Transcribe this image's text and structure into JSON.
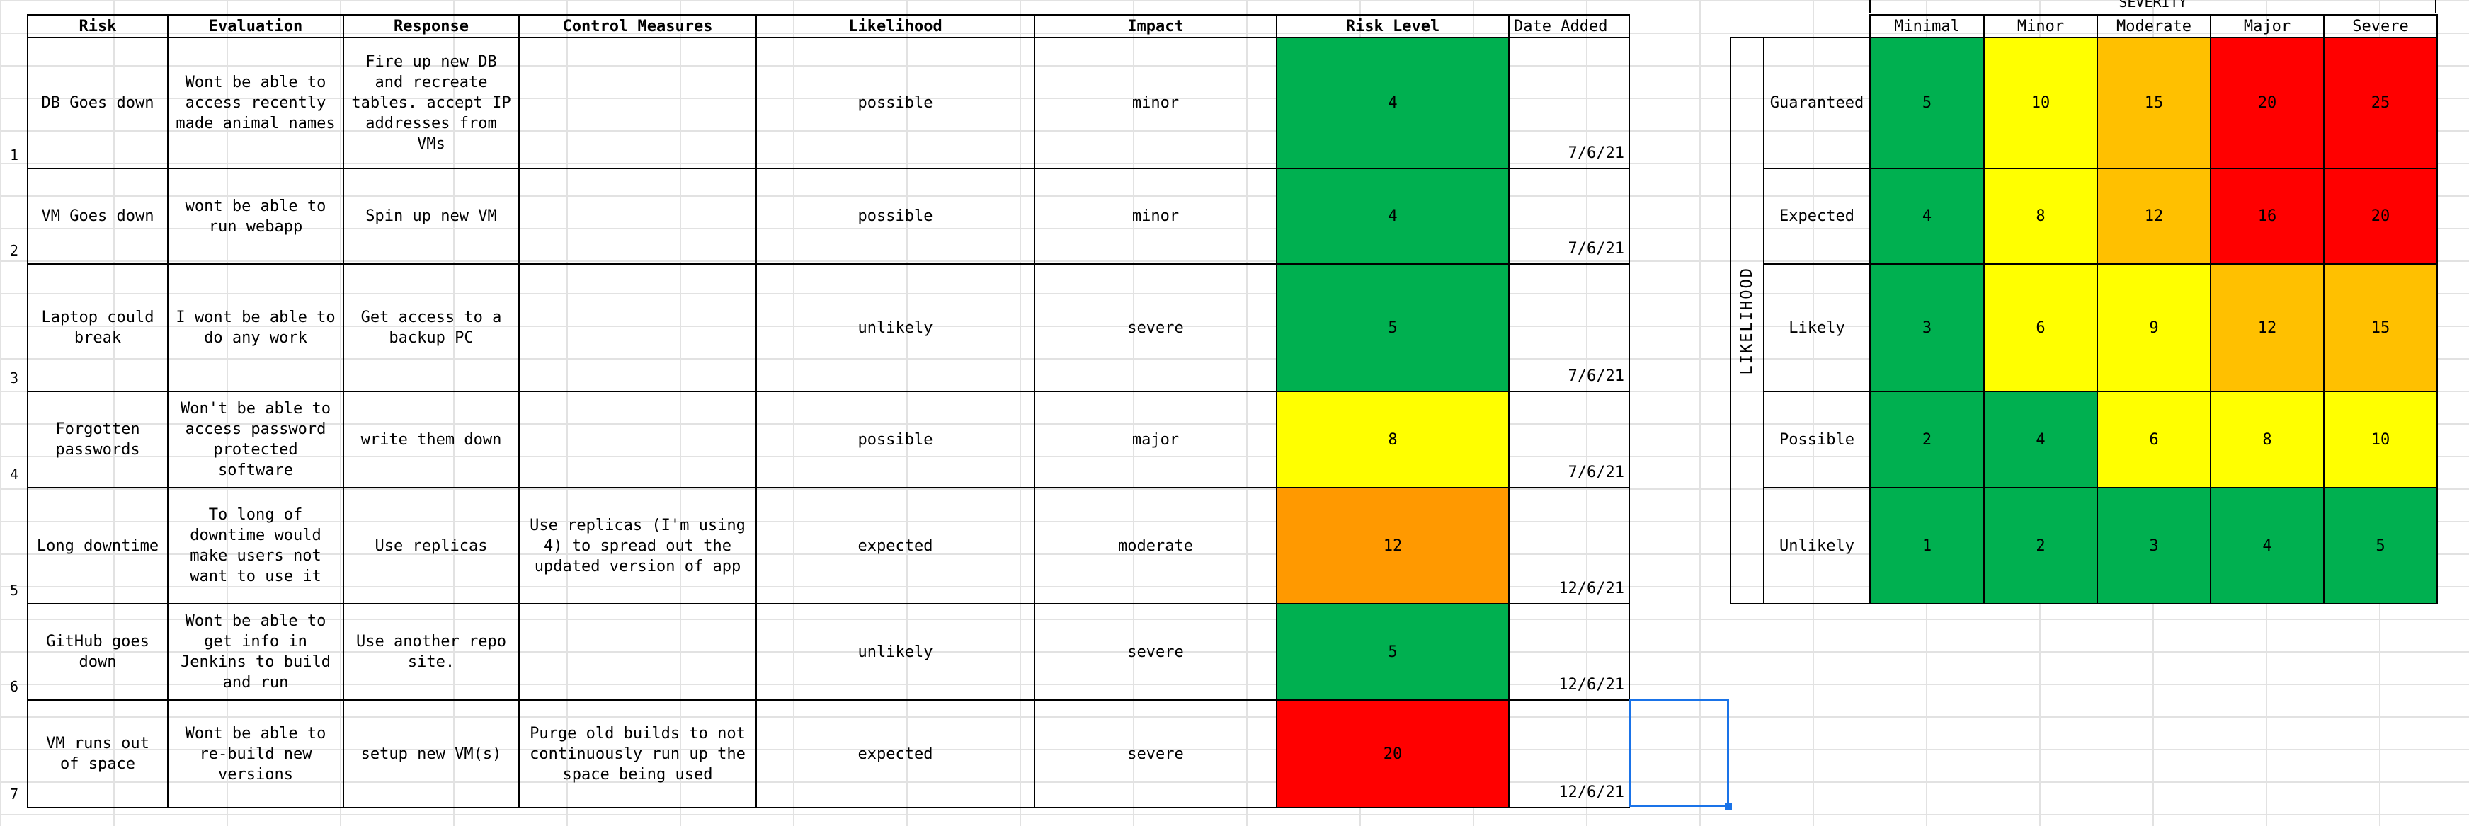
{
  "headers": {
    "risk": "Risk",
    "evaluation": "Evaluation",
    "response": "Response",
    "control": "Control Measures",
    "likelihood": "Likelihood",
    "impact": "Impact",
    "level": "Risk Level",
    "date": "Date Added"
  },
  "rows": [
    {
      "num": "1",
      "risk": "DB Goes down",
      "evaluation": "Wont be able to access recently made animal names",
      "response": "Fire up new DB and recreate tables. accept IP addresses from VMs",
      "control": "",
      "likelihood": "possible",
      "impact": "minor",
      "level": "4",
      "level_color": "green",
      "date": "7/6/21"
    },
    {
      "num": "2",
      "risk": "VM Goes down",
      "evaluation": "wont be able to run webapp",
      "response": "Spin up new VM",
      "control": "",
      "likelihood": "possible",
      "impact": "minor",
      "level": "4",
      "level_color": "green",
      "date": "7/6/21"
    },
    {
      "num": "3",
      "risk": "Laptop could break",
      "evaluation": "I wont be able to do any work",
      "response": "Get access to a backup PC",
      "control": "",
      "likelihood": "unlikely",
      "impact": "severe",
      "level": "5",
      "level_color": "green",
      "date": "7/6/21"
    },
    {
      "num": "4",
      "risk": "Forgotten passwords",
      "evaluation": "Won't be able to access password protected software",
      "response": "write them down",
      "control": "",
      "likelihood": "possible",
      "impact": "major",
      "level": "8",
      "level_color": "yellow",
      "date": "7/6/21"
    },
    {
      "num": "5",
      "risk": "Long downtime",
      "evaluation": "To long of downtime would make users not want to use it",
      "response": "Use replicas",
      "control": "Use replicas (I'm using 4) to spread out the updated version of app",
      "likelihood": "expected",
      "impact": "moderate",
      "level": "12",
      "level_color": "orange",
      "date": "12/6/21"
    },
    {
      "num": "6",
      "risk": "GitHub goes down",
      "evaluation": "Wont be able to get info in Jenkins to build and run",
      "response": "Use another repo site.",
      "control": "",
      "likelihood": "unlikely",
      "impact": "severe",
      "level": "5",
      "level_color": "green",
      "date": "12/6/21"
    },
    {
      "num": "7",
      "risk": "VM runs out of space",
      "evaluation": "Wont be able to re-build new versions",
      "response": "setup new VM(s)",
      "control": "Purge old builds to not continuously run up the space being used",
      "likelihood": "expected",
      "impact": "severe",
      "level": "20",
      "level_color": "red",
      "date": "12/6/21"
    }
  ],
  "matrix": {
    "severity_title": "SEVERITY",
    "likelihood_title": "LIKELIHOOD",
    "severity_labels": [
      "Minimal",
      "Minor",
      "Moderate",
      "Major",
      "Severe"
    ],
    "likelihood_labels": [
      "Guaranteed",
      "Expected",
      "Likely",
      "Possible",
      "Unlikely"
    ],
    "values": [
      [
        "5",
        "10",
        "15",
        "20",
        "25"
      ],
      [
        "4",
        "8",
        "12",
        "16",
        "20"
      ],
      [
        "3",
        "6",
        "9",
        "12",
        "15"
      ],
      [
        "2",
        "4",
        "6",
        "8",
        "10"
      ],
      [
        "1",
        "2",
        "3",
        "4",
        "5"
      ]
    ],
    "colors": [
      [
        "green",
        "yellow",
        "orange",
        "red",
        "red"
      ],
      [
        "green",
        "yellow",
        "orange",
        "red",
        "red"
      ],
      [
        "green",
        "yellow",
        "yellow",
        "orange",
        "orange"
      ],
      [
        "green",
        "green",
        "yellow",
        "yellow",
        "yellow"
      ],
      [
        "green",
        "green",
        "green",
        "green",
        "green"
      ]
    ]
  },
  "colors": {
    "green": "#00b050",
    "yellow": "#ffff00",
    "orange": "#ffc000",
    "orange_table": "#ff9900",
    "red": "#ff0000",
    "selection": "#1a73e8"
  }
}
